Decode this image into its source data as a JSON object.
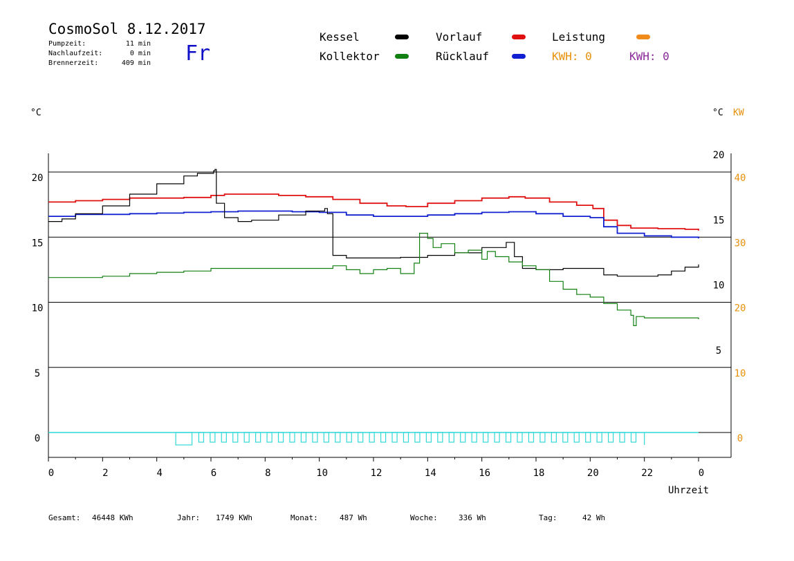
{
  "header": {
    "title": "CosmoSol 8.12.2017",
    "day": "Fr",
    "stats": [
      {
        "label": "Pumpzeit:",
        "value": "11 min"
      },
      {
        "label": "Nachlaufzeit:",
        "value": "0 min"
      },
      {
        "label": "Brennerzeit:",
        "value": "409 min"
      }
    ]
  },
  "legend": {
    "kessel": {
      "label": "Kessel",
      "color": "#000000"
    },
    "vorlauf": {
      "label": "Vorlauf",
      "color": "#e01010"
    },
    "leistung": {
      "label": "Leistung",
      "color": "#f08a1a"
    },
    "kollektor": {
      "label": "Kollektor",
      "color": "#108010"
    },
    "ruecklauf": {
      "label": "Rücklauf",
      "color": "#1020d0"
    },
    "kwh1": "KWH: 0",
    "kwh2": "KWH: 0"
  },
  "axes": {
    "left_unit": "°C",
    "right_unit_c": "°C",
    "right_unit_kw": "KW",
    "xlabel": "Uhrzeit"
  },
  "footer": {
    "gesamt_label": "Gesamt:",
    "gesamt_value": "46448 KWh",
    "jahr_label": "Jahr:",
    "jahr_value": "1749 KWh",
    "monat_label": "Monat:",
    "monat_value": "487 Wh",
    "woche_label": "Woche:",
    "woche_value": "336 Wh",
    "tag_label": "Tag:",
    "tag_value": "42 Wh"
  },
  "chart_data": {
    "type": "line",
    "xlabel": "Uhrzeit",
    "ylabel": "°C",
    "x_ticks": [
      "0",
      "2",
      "4",
      "6",
      "8",
      "10",
      "12",
      "14",
      "16",
      "18",
      "20",
      "22",
      "0"
    ],
    "xlim": [
      0,
      24
    ],
    "ylim_left": [
      -1.5,
      21.5
    ],
    "left_ticks": [
      0,
      5,
      10,
      15,
      20
    ],
    "right_c_ticks": [
      5,
      10,
      15,
      20
    ],
    "right_kw_ticks": [
      0,
      10,
      20,
      30,
      40
    ],
    "grid_y": [
      0,
      5,
      10,
      15,
      20
    ],
    "series": [
      {
        "name": "Vorlauf",
        "color": "#e01010",
        "points": [
          [
            0,
            17.7
          ],
          [
            1,
            17.8
          ],
          [
            2,
            17.9
          ],
          [
            3,
            18.0
          ],
          [
            4,
            18.0
          ],
          [
            5,
            18.05
          ],
          [
            6,
            18.2
          ],
          [
            6.5,
            18.3
          ],
          [
            7.5,
            18.3
          ],
          [
            8.5,
            18.2
          ],
          [
            9.5,
            18.1
          ],
          [
            10.5,
            17.9
          ],
          [
            11.5,
            17.6
          ],
          [
            12.5,
            17.4
          ],
          [
            13.2,
            17.35
          ],
          [
            14,
            17.6
          ],
          [
            15,
            17.8
          ],
          [
            16,
            18.0
          ],
          [
            17,
            18.1
          ],
          [
            17.6,
            18.0
          ],
          [
            18.5,
            17.7
          ],
          [
            19.5,
            17.45
          ],
          [
            20.1,
            17.2
          ],
          [
            20.5,
            16.3
          ],
          [
            21,
            15.9
          ],
          [
            21.5,
            15.7
          ],
          [
            22.5,
            15.65
          ],
          [
            23.5,
            15.6
          ],
          [
            24,
            15.5
          ]
        ]
      },
      {
        "name": "Rücklauf",
        "color": "#1020d0",
        "points": [
          [
            0,
            16.6
          ],
          [
            1,
            16.75
          ],
          [
            2,
            16.75
          ],
          [
            3,
            16.8
          ],
          [
            4,
            16.85
          ],
          [
            5,
            16.9
          ],
          [
            6,
            16.95
          ],
          [
            7,
            17.0
          ],
          [
            8,
            17.0
          ],
          [
            9,
            16.95
          ],
          [
            10,
            16.9
          ],
          [
            11,
            16.7
          ],
          [
            12,
            16.6
          ],
          [
            13,
            16.6
          ],
          [
            14,
            16.7
          ],
          [
            15,
            16.8
          ],
          [
            16,
            16.9
          ],
          [
            17,
            16.95
          ],
          [
            18,
            16.8
          ],
          [
            19,
            16.6
          ],
          [
            20,
            16.5
          ],
          [
            20.5,
            15.8
          ],
          [
            21,
            15.3
          ],
          [
            22,
            15.1
          ],
          [
            23,
            15.0
          ],
          [
            24,
            14.9
          ]
        ]
      },
      {
        "name": "Kessel",
        "color": "#000000",
        "points": [
          [
            0,
            16.2
          ],
          [
            0.5,
            16.4
          ],
          [
            1,
            16.8
          ],
          [
            2,
            17.4
          ],
          [
            3,
            18.3
          ],
          [
            4,
            19.1
          ],
          [
            5,
            19.7
          ],
          [
            5.5,
            19.9
          ],
          [
            6.1,
            20.1
          ],
          [
            6.15,
            20.2
          ],
          [
            6.2,
            17.6
          ],
          [
            6.5,
            16.5
          ],
          [
            7,
            16.2
          ],
          [
            7.5,
            16.3
          ],
          [
            8.5,
            16.7
          ],
          [
            9.5,
            17.0
          ],
          [
            10.2,
            17.2
          ],
          [
            10.3,
            16.8
          ],
          [
            10.5,
            13.6
          ],
          [
            11,
            13.4
          ],
          [
            12,
            13.4
          ],
          [
            13,
            13.45
          ],
          [
            14,
            13.6
          ],
          [
            15,
            13.8
          ],
          [
            16,
            14.2
          ],
          [
            16.9,
            14.6
          ],
          [
            17.2,
            13.5
          ],
          [
            17.5,
            12.6
          ],
          [
            18,
            12.5
          ],
          [
            19,
            12.6
          ],
          [
            20,
            12.6
          ],
          [
            20.5,
            12.1
          ],
          [
            21,
            12.0
          ],
          [
            22,
            12.0
          ],
          [
            22.5,
            12.1
          ],
          [
            23,
            12.4
          ],
          [
            23.5,
            12.7
          ],
          [
            24,
            12.9
          ]
        ]
      },
      {
        "name": "Kollektor",
        "color": "#108010",
        "points": [
          [
            0,
            11.9
          ],
          [
            1,
            11.9
          ],
          [
            2,
            12.0
          ],
          [
            3,
            12.2
          ],
          [
            4,
            12.3
          ],
          [
            5,
            12.4
          ],
          [
            6,
            12.6
          ],
          [
            7,
            12.6
          ],
          [
            8,
            12.6
          ],
          [
            9,
            12.6
          ],
          [
            10,
            12.6
          ],
          [
            10.5,
            12.8
          ],
          [
            11,
            12.5
          ],
          [
            11.5,
            12.2
          ],
          [
            12,
            12.5
          ],
          [
            12.5,
            12.6
          ],
          [
            13,
            12.2
          ],
          [
            13.5,
            13.0
          ],
          [
            13.7,
            15.3
          ],
          [
            14,
            14.9
          ],
          [
            14.2,
            14.2
          ],
          [
            14.5,
            14.5
          ],
          [
            15,
            13.8
          ],
          [
            15.5,
            14.0
          ],
          [
            16,
            13.3
          ],
          [
            16.2,
            13.9
          ],
          [
            16.5,
            13.5
          ],
          [
            17,
            13.1
          ],
          [
            17.5,
            12.8
          ],
          [
            18,
            12.5
          ],
          [
            18.5,
            11.6
          ],
          [
            19,
            11.0
          ],
          [
            19.5,
            10.6
          ],
          [
            20,
            10.4
          ],
          [
            20.5,
            9.9
          ],
          [
            21,
            9.4
          ],
          [
            21.5,
            9.0
          ],
          [
            21.6,
            8.2
          ],
          [
            21.7,
            8.9
          ],
          [
            22,
            8.8
          ],
          [
            23,
            8.8
          ],
          [
            24,
            8.7
          ]
        ]
      }
    ]
  }
}
